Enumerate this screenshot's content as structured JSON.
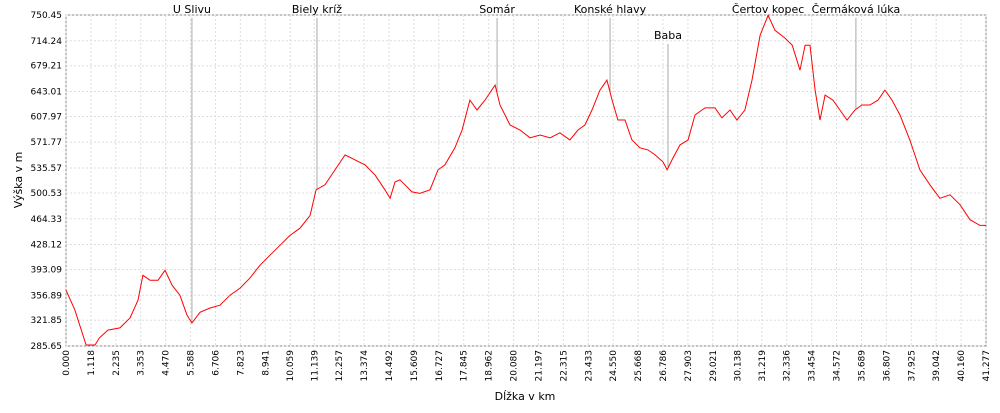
{
  "chart_data": {
    "type": "line",
    "xlabel": "Dĺžka v km",
    "ylabel": "Výška v m",
    "xlim": [
      0,
      41.277
    ],
    "ylim": [
      285.65,
      750.45
    ],
    "xticks": [
      {
        "value": 0,
        "label": "0.000"
      },
      1.118,
      2.235,
      3.353,
      {
        "value": 4.47,
        "label": "4.470"
      },
      5.588,
      6.706,
      7.823,
      8.941,
      10.059,
      11.139,
      12.257,
      13.374,
      14.492,
      15.609,
      16.727,
      17.845,
      18.962,
      {
        "value": 20.08,
        "label": "20.080"
      },
      21.197,
      22.315,
      23.433,
      {
        "value": 24.55,
        "label": "24.550"
      },
      25.668,
      26.786,
      27.903,
      29.021,
      30.138,
      31.219,
      32.336,
      33.454,
      34.572,
      35.689,
      36.807,
      37.925,
      39.042,
      {
        "value": 40.16,
        "label": "40.160"
      },
      41.277
    ],
    "yticks": [
      285.65,
      321.85,
      356.89,
      393.09,
      428.12,
      464.33,
      500.53,
      535.57,
      571.77,
      607.97,
      643.01,
      679.21,
      714.24,
      750.45
    ],
    "grid": true,
    "series": [
      {
        "color": "#ff0000",
        "x": [
          0,
          0.4,
          0.9,
          1.3,
          1.5,
          1.88,
          2.42,
          2.87,
          3.23,
          3.45,
          3.77,
          4.13,
          4.44,
          4.76,
          5.11,
          5.43,
          5.65,
          6.01,
          6.46,
          6.91,
          7.36,
          7.81,
          8.25,
          8.7,
          9.15,
          9.6,
          10.05,
          10.5,
          10.95,
          11.22,
          11.62,
          12.07,
          12.52,
          12.97,
          13.42,
          13.86,
          14.31,
          14.54,
          14.76,
          14.98,
          15.21,
          15.52,
          15.88,
          16.33,
          16.69,
          17.0,
          17.45,
          17.77,
          18.12,
          18.44,
          18.8,
          19.25,
          19.47,
          19.92,
          20.37,
          20.82,
          21.27,
          21.72,
          22.16,
          22.61,
          22.97,
          23.28,
          23.6,
          23.96,
          24.27,
          24.5,
          24.76,
          25.08,
          25.39,
          25.75,
          26.11,
          26.43,
          26.79,
          26.97,
          27.19,
          27.55,
          27.91,
          28.22,
          28.67,
          29.12,
          29.43,
          29.79,
          30.1,
          30.46,
          30.78,
          31.14,
          31.5,
          31.81,
          32.26,
          32.58,
          32.93,
          33.16,
          33.38,
          33.61,
          33.83,
          34.06,
          34.41,
          34.72,
          35.04,
          35.4,
          35.71,
          36.07,
          36.43,
          36.74,
          37.06,
          37.42,
          37.86,
          38.31,
          38.76,
          39.21,
          39.66,
          40.11,
          40.56,
          41.01,
          41.277
        ],
        "values": [
          364,
          336,
          287,
          287,
          297,
          308,
          311,
          325,
          350,
          385,
          378,
          378,
          392,
          371,
          357,
          329,
          318,
          333,
          339,
          343,
          357,
          367,
          381,
          399,
          413,
          427,
          441,
          451,
          469,
          505,
          512,
          533,
          554,
          547,
          540,
          526,
          505,
          493,
          516,
          519,
          512,
          502,
          500,
          505,
          533,
          540,
          564,
          589,
          631,
          617,
          631,
          652,
          624,
          596,
          589,
          578,
          582,
          578,
          585,
          575,
          589,
          596,
          617,
          645,
          659,
          631,
          603,
          603,
          575,
          564,
          561,
          554,
          544,
          533,
          547,
          568,
          575,
          610,
          620,
          620,
          606,
          617,
          603,
          617,
          659,
          722,
          750,
          729,
          718,
          708,
          673,
          708,
          708,
          645,
          603,
          638,
          631,
          617,
          603,
          617,
          624,
          624,
          631,
          645,
          631,
          610,
          575,
          533,
          512,
          493,
          498,
          484,
          463,
          455,
          455
        ]
      }
    ],
    "markers": [
      {
        "x": 5.65,
        "label": "U Slivu"
      },
      {
        "x": 11.26,
        "label": "Biely kríž"
      },
      {
        "x": 19.34,
        "label": "Somár"
      },
      {
        "x": 24.41,
        "label": "Konské hlavy"
      },
      {
        "x": 27.01,
        "label": "Baba",
        "low": true
      },
      {
        "x": 31.5,
        "label": "Čertov kopec"
      },
      {
        "x": 35.44,
        "label": "Čermáková lúka"
      }
    ]
  }
}
